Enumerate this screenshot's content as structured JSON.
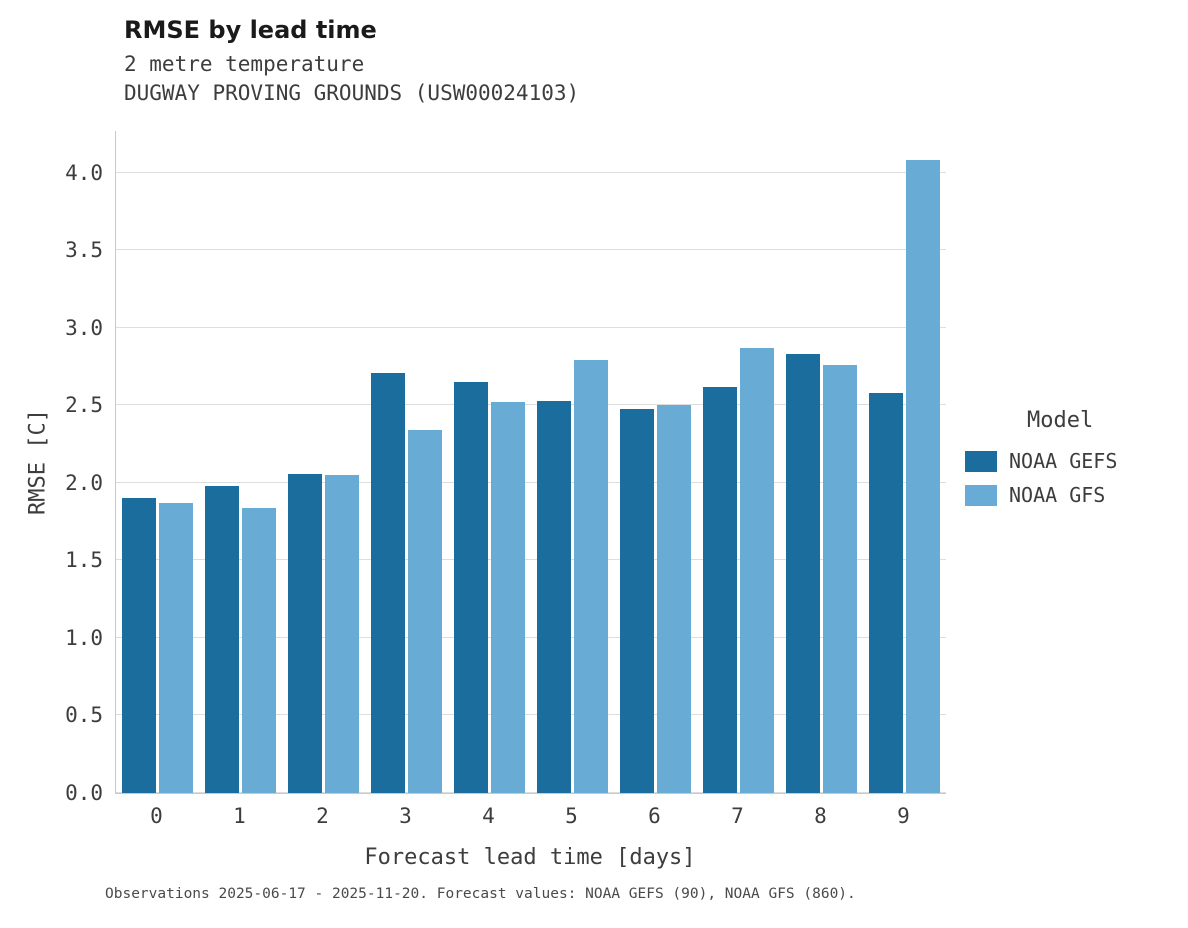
{
  "chart": {
    "title": "RMSE by lead time",
    "subtitle1": "2 metre temperature",
    "subtitle2": "DUGWAY PROVING GROUNDS (USW00024103)",
    "legend_title": "Model",
    "caption": "Observations 2025-06-17 - 2025-11-20. Forecast values: NOAA GEFS (90), NOAA GFS (860)."
  },
  "chart_data": {
    "type": "bar",
    "title": "RMSE by lead time",
    "xlabel": "Forecast lead time [days]",
    "ylabel": "RMSE [C]",
    "categories": [
      "0",
      "1",
      "2",
      "3",
      "4",
      "5",
      "6",
      "7",
      "8",
      "9"
    ],
    "series": [
      {
        "name": "NOAA GEFS",
        "color": "#1b6d9d",
        "values": [
          1.9,
          1.98,
          2.06,
          2.71,
          2.65,
          2.53,
          2.48,
          2.62,
          2.83,
          2.58
        ]
      },
      {
        "name": "NOAA GFS",
        "color": "#68acd5",
        "values": [
          1.87,
          1.84,
          2.05,
          2.34,
          2.52,
          2.79,
          2.5,
          2.87,
          2.76,
          4.08
        ]
      }
    ],
    "ylim": [
      0,
      4.27
    ],
    "yticks": [
      0.0,
      0.5,
      1.0,
      1.5,
      2.0,
      2.5,
      3.0,
      3.5,
      4.0
    ],
    "grid": "horizontal",
    "legend_position": "right"
  }
}
